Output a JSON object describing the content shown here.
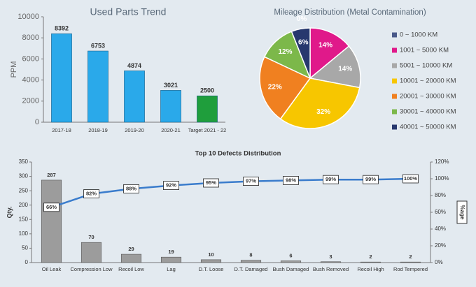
{
  "chart_data": [
    {
      "type": "bar",
      "title": "Used Parts Trend",
      "ylabel": "PPM",
      "categories": [
        "2017-18",
        "2018-19",
        "2019-20",
        "2020-21",
        "Target 2021 - 22"
      ],
      "values": [
        8392,
        6753,
        4874,
        3021,
        2500
      ],
      "colors": [
        "#2aa9ea",
        "#2aa9ea",
        "#2aa9ea",
        "#2aa9ea",
        "#1f9e3c"
      ],
      "ylim": [
        0,
        10000
      ],
      "yticks": [
        0,
        2000,
        4000,
        6000,
        8000,
        10000
      ]
    },
    {
      "type": "pie",
      "title": "Mileage Distribution  (Metal Contamination)",
      "categories": [
        "0 ~ 1000 KM",
        "1001 ~ 5000 KM",
        "5001 ~ 10000 KM",
        "10001 ~ 20000 KM",
        "20001 ~ 30000 KM",
        "30001 ~ 40000 KM",
        "40001 ~ 50000 KM"
      ],
      "values": [
        0,
        14,
        14,
        32,
        22,
        12,
        6
      ],
      "value_labels": [
        "0%",
        "14%",
        "14%",
        "32%",
        "22%",
        "12%",
        "6%"
      ],
      "colors": [
        "#4a5a8a",
        "#e0198a",
        "#a8a8a8",
        "#f7c600",
        "#f08020",
        "#7cb84a",
        "#27386e"
      ],
      "legend": "right"
    },
    {
      "type": "combo",
      "title": "Top 10 Defects Distribution",
      "ylabel": "Qty.",
      "y2label": "%age",
      "categories": [
        "Oil Leak",
        "Compression Low",
        "Recoil Low",
        "Lag",
        "D.T. Loose",
        "D.T. Damaged",
        "Bush Damaged",
        "Bush Removed",
        "Recoil High",
        "Rod Tempered"
      ],
      "series": [
        {
          "type": "bar",
          "color": "#9c9c9c",
          "values": [
            287,
            70,
            29,
            19,
            10,
            8,
            6,
            3,
            2,
            2
          ]
        },
        {
          "type": "line",
          "axis": "y2",
          "color": "#3a7ccc",
          "values": [
            66,
            82,
            88,
            92,
            95,
            97,
            98,
            99,
            99,
            100
          ],
          "value_labels": [
            "66%",
            "82%",
            "88%",
            "92%",
            "95%",
            "97%",
            "98%",
            "99%",
            "99%",
            "100%"
          ]
        }
      ],
      "ylim": [
        0,
        350
      ],
      "yticks": [
        0,
        50,
        100,
        150,
        200,
        250,
        300,
        350
      ],
      "y2lim": [
        0,
        120
      ],
      "y2ticks": [
        {
          "value": 0,
          "label": "0%"
        },
        {
          "value": 20,
          "label": "20%"
        },
        {
          "value": 40,
          "label": "40%"
        },
        {
          "value": 60,
          "label": "60%"
        },
        {
          "value": 80,
          "label": "80%"
        },
        {
          "value": 100,
          "label": "100%"
        },
        {
          "value": 120,
          "label": "120%"
        }
      ]
    }
  ]
}
